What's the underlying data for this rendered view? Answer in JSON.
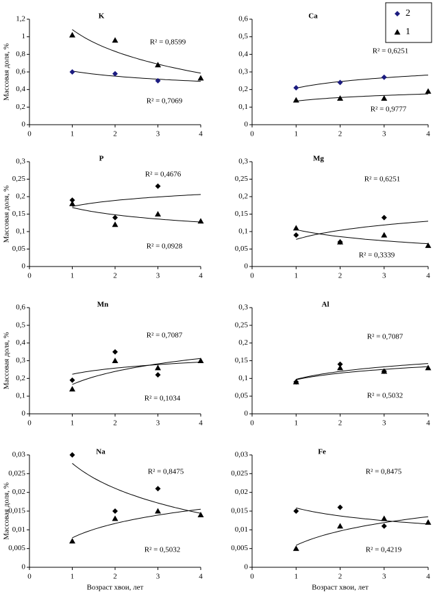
{
  "chart_data": [
    {
      "type": "scatter",
      "title": "K",
      "y_label": "Массовая доля, %",
      "x": [
        1,
        2,
        3,
        4
      ],
      "xlim": [
        0,
        4
      ],
      "xticks": [
        0,
        1,
        2,
        3,
        4
      ],
      "ylim": [
        0,
        1.2
      ],
      "yticks": [
        0,
        {
          "value": 0.2,
          "label": "0,2"
        },
        {
          "value": 0.4,
          "label": "0,4"
        },
        {
          "value": 0.6,
          "label": "0,6"
        },
        {
          "value": 0.8,
          "label": "0,8"
        },
        1,
        {
          "value": 1.2,
          "label": "1,2"
        }
      ],
      "series": [
        {
          "name": "2",
          "color": "#1c1c80",
          "marker": "diamond",
          "values": [
            0.6,
            0.58,
            0.5,
            null
          ]
        },
        {
          "name": "1",
          "color": "#000000",
          "marker": "triangle",
          "values": [
            1.02,
            0.96,
            0.68,
            0.53
          ]
        }
      ],
      "annotations": [
        "R² = 0,8599",
        "R² = 0,7069"
      ]
    },
    {
      "type": "scatter",
      "title": "Ca",
      "legend": "upper right",
      "x": [
        1,
        2,
        3,
        4
      ],
      "xlim": [
        0,
        4
      ],
      "xticks": [
        0,
        1,
        2,
        3,
        4
      ],
      "ylim": [
        0,
        0.6
      ],
      "yticks": [
        0,
        {
          "value": 0.1,
          "label": "0,1"
        },
        {
          "value": 0.2,
          "label": "0,2"
        },
        {
          "value": 0.3,
          "label": "0,3"
        },
        {
          "value": 0.4,
          "label": "0,4"
        },
        {
          "value": 0.5,
          "label": "0,5"
        },
        {
          "value": 0.6,
          "label": "0,6"
        }
      ],
      "series": [
        {
          "name": "2",
          "color": "#1c1c80",
          "marker": "diamond",
          "values": [
            0.21,
            0.24,
            0.27,
            null
          ]
        },
        {
          "name": "1",
          "color": "#000000",
          "marker": "triangle",
          "values": [
            0.14,
            0.15,
            0.15,
            0.19
          ]
        }
      ],
      "annotations": [
        "R² = 0,6251",
        "R² = 0,9777"
      ]
    },
    {
      "type": "scatter",
      "title": "P",
      "y_label": "Массовая доля, %",
      "x": [
        1,
        2,
        3,
        4
      ],
      "xlim": [
        0,
        4
      ],
      "xticks": [
        0,
        1,
        2,
        3,
        4
      ],
      "ylim": [
        0,
        0.3
      ],
      "yticks": [
        0,
        {
          "value": 0.05,
          "label": "0,05"
        },
        {
          "value": 0.1,
          "label": "0,1"
        },
        {
          "value": 0.15,
          "label": "0,15"
        },
        {
          "value": 0.2,
          "label": "0,2"
        },
        {
          "value": 0.25,
          "label": "0,25"
        },
        {
          "value": 0.3,
          "label": "0,3"
        }
      ],
      "series": [
        {
          "name": "2",
          "color": "#000000",
          "marker": "diamond",
          "values": [
            0.19,
            0.14,
            0.23,
            null
          ]
        },
        {
          "name": "1",
          "color": "#000000",
          "marker": "triangle",
          "values": [
            0.18,
            0.12,
            0.15,
            0.13
          ]
        }
      ],
      "annotations": [
        "R² = 0,4676",
        "R² = 0,0928"
      ]
    },
    {
      "type": "scatter",
      "title": "Mg",
      "x": [
        1,
        2,
        3,
        4
      ],
      "xlim": [
        0,
        4
      ],
      "xticks": [
        0,
        1,
        2,
        3,
        4
      ],
      "ylim": [
        0,
        0.3
      ],
      "yticks": [
        0,
        {
          "value": 0.05,
          "label": "0,05"
        },
        {
          "value": 0.1,
          "label": "0,1"
        },
        {
          "value": 0.15,
          "label": "0,15"
        },
        {
          "value": 0.2,
          "label": "0,2"
        },
        {
          "value": 0.25,
          "label": "0,25"
        },
        {
          "value": 0.3,
          "label": "0,3"
        }
      ],
      "series": [
        {
          "name": "2",
          "color": "#000000",
          "marker": "diamond",
          "values": [
            0.09,
            0.07,
            0.14,
            null
          ]
        },
        {
          "name": "1",
          "color": "#000000",
          "marker": "triangle",
          "values": [
            0.11,
            0.07,
            0.09,
            0.06
          ]
        }
      ],
      "annotations": [
        "R² = 0,6251",
        "R² = 0,3339"
      ]
    },
    {
      "type": "scatter",
      "title": "Mn",
      "y_label": "Массовая доля, %",
      "x": [
        1,
        2,
        3,
        4
      ],
      "xlim": [
        0,
        4
      ],
      "xticks": [
        0,
        1,
        2,
        3,
        4
      ],
      "ylim": [
        0,
        0.6
      ],
      "yticks": [
        0,
        {
          "value": 0.1,
          "label": "0,1"
        },
        {
          "value": 0.2,
          "label": "0,2"
        },
        {
          "value": 0.3,
          "label": "0,3"
        },
        {
          "value": 0.4,
          "label": "0,4"
        },
        {
          "value": 0.5,
          "label": "0,5"
        },
        {
          "value": 0.6,
          "label": "0,6"
        }
      ],
      "series": [
        {
          "name": "2",
          "color": "#000000",
          "marker": "diamond",
          "values": [
            0.19,
            0.35,
            0.22,
            null
          ]
        },
        {
          "name": "1",
          "color": "#000000",
          "marker": "triangle",
          "values": [
            0.14,
            0.3,
            0.26,
            0.3
          ]
        }
      ],
      "annotations": [
        "R² = 0,7087",
        "R² = 0,1034"
      ]
    },
    {
      "type": "scatter",
      "title": "Al",
      "x": [
        1,
        2,
        3,
        4
      ],
      "xlim": [
        0,
        4
      ],
      "xticks": [
        0,
        1,
        2,
        3,
        4
      ],
      "ylim": [
        0,
        0.3
      ],
      "yticks": [
        0,
        {
          "value": 0.05,
          "label": "0,05"
        },
        {
          "value": 0.1,
          "label": "0,1"
        },
        {
          "value": 0.15,
          "label": "0,15"
        },
        {
          "value": 0.2,
          "label": "0,2"
        },
        {
          "value": 0.25,
          "label": "0,25"
        },
        {
          "value": 0.3,
          "label": "0,3"
        }
      ],
      "series": [
        {
          "name": "2",
          "color": "#000000",
          "marker": "diamond",
          "values": [
            0.09,
            0.14,
            0.12,
            null
          ]
        },
        {
          "name": "1",
          "color": "#000000",
          "marker": "triangle",
          "values": [
            0.09,
            0.13,
            0.12,
            0.13
          ]
        }
      ],
      "annotations": [
        "R² = 0,7087",
        "R² = 0,5032"
      ]
    },
    {
      "type": "scatter",
      "title": "Na",
      "y_label": "Массовая доля, %",
      "x_label": "Возраст хвои, лет",
      "x": [
        1,
        2,
        3,
        4
      ],
      "xlim": [
        0,
        4
      ],
      "xticks": [
        0,
        1,
        2,
        3,
        4
      ],
      "ylim": [
        0,
        0.03
      ],
      "yticks": [
        0,
        {
          "value": 0.005,
          "label": "0,005"
        },
        {
          "value": 0.01,
          "label": "0,01"
        },
        {
          "value": 0.015,
          "label": "0,015"
        },
        {
          "value": 0.02,
          "label": "0,02"
        },
        {
          "value": 0.025,
          "label": "0,025"
        },
        {
          "value": 0.03,
          "label": "0,03"
        }
      ],
      "series": [
        {
          "name": "2",
          "color": "#000000",
          "marker": "diamond",
          "values": [
            0.03,
            0.015,
            0.021,
            null
          ]
        },
        {
          "name": "1",
          "color": "#000000",
          "marker": "triangle",
          "values": [
            0.007,
            0.013,
            0.015,
            0.014
          ]
        }
      ],
      "annotations": [
        "R² = 0,8475",
        "R² = 0,5032"
      ]
    },
    {
      "type": "scatter",
      "title": "Fe",
      "x_label": "Возраст хвои, лет",
      "x": [
        1,
        2,
        3,
        4
      ],
      "xlim": [
        0,
        4
      ],
      "xticks": [
        0,
        1,
        2,
        3,
        4
      ],
      "ylim": [
        0,
        0.03
      ],
      "yticks": [
        0,
        {
          "value": 0.005,
          "label": "0,005"
        },
        {
          "value": 0.01,
          "label": "0,01"
        },
        {
          "value": 0.015,
          "label": "0,015"
        },
        {
          "value": 0.02,
          "label": "0,02"
        },
        {
          "value": 0.025,
          "label": "0,025"
        },
        {
          "value": 0.03,
          "label": "0,03"
        }
      ],
      "series": [
        {
          "name": "2",
          "color": "#000000",
          "marker": "diamond",
          "values": [
            0.015,
            0.016,
            0.011,
            null
          ]
        },
        {
          "name": "1",
          "color": "#000000",
          "marker": "triangle",
          "values": [
            0.005,
            0.011,
            0.013,
            0.012
          ]
        }
      ],
      "annotations": [
        "R² = 0,8475",
        "R² = 0,4219"
      ]
    }
  ]
}
